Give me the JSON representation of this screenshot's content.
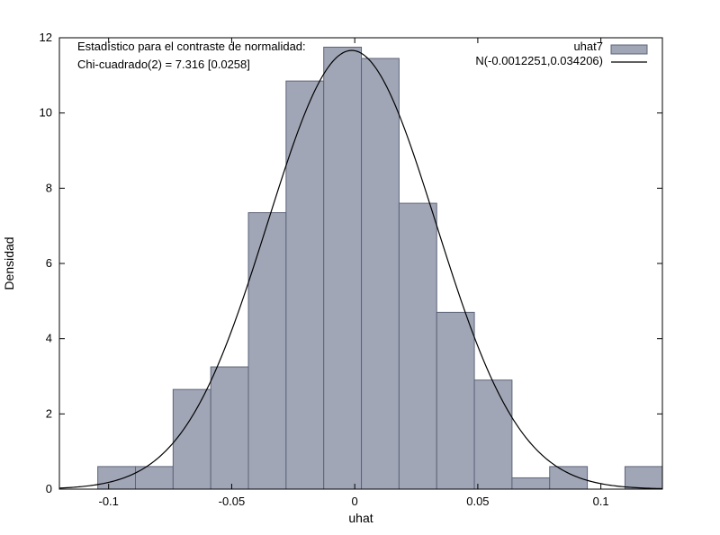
{
  "chart_data": {
    "type": "bar",
    "subtype": "histogram",
    "xlabel": "uhat",
    "ylabel": "Densidad",
    "xlim": [
      -0.12,
      0.125
    ],
    "ylim": [
      0,
      12
    ],
    "xticks": [
      -0.1,
      -0.05,
      0,
      0.05,
      0.1
    ],
    "xtick_labels": [
      "-0.1",
      "-0.05",
      "0",
      "0.05",
      "0.1"
    ],
    "yticks": [
      0,
      2,
      4,
      6,
      8,
      10,
      12
    ],
    "ytick_labels": [
      "0",
      "2",
      "4",
      "6",
      "8",
      "10",
      "12"
    ],
    "grid": false,
    "annotations": [
      "Estadístico para el contraste de normalidad:",
      "Chi-cuadrado(2) = 7.316 [0.0258]"
    ],
    "legend_position": "top-right",
    "bin_width": 0.0153,
    "bins": [
      {
        "x0": -0.1044,
        "x1": -0.0891,
        "value": 0.6
      },
      {
        "x0": -0.0891,
        "x1": -0.0738,
        "value": 0.6
      },
      {
        "x0": -0.0738,
        "x1": -0.0585,
        "value": 2.65
      },
      {
        "x0": -0.0585,
        "x1": -0.0432,
        "value": 3.25
      },
      {
        "x0": -0.0432,
        "x1": -0.0279,
        "value": 7.35
      },
      {
        "x0": -0.0279,
        "x1": -0.0126,
        "value": 10.85
      },
      {
        "x0": -0.0126,
        "x1": 0.0027,
        "value": 11.75
      },
      {
        "x0": 0.0027,
        "x1": 0.018,
        "value": 11.45
      },
      {
        "x0": 0.018,
        "x1": 0.0333,
        "value": 7.6
      },
      {
        "x0": 0.0333,
        "x1": 0.0486,
        "value": 4.7
      },
      {
        "x0": 0.0486,
        "x1": 0.0639,
        "value": 2.9
      },
      {
        "x0": 0.0639,
        "x1": 0.0792,
        "value": 0.3
      },
      {
        "x0": 0.0792,
        "x1": 0.0945,
        "value": 0.6
      },
      {
        "x0": 0.1098,
        "x1": 0.1251,
        "value": 0.6
      }
    ],
    "series": [
      {
        "name": "uhat7",
        "kind": "histogram",
        "color": "#a0a6b6",
        "edge_color": "#5d6478"
      },
      {
        "name": "N(-0.0012251,0.034206)",
        "kind": "normal-density",
        "mean": -0.0012251,
        "sd": 0.034206,
        "color": "#000000"
      }
    ]
  }
}
